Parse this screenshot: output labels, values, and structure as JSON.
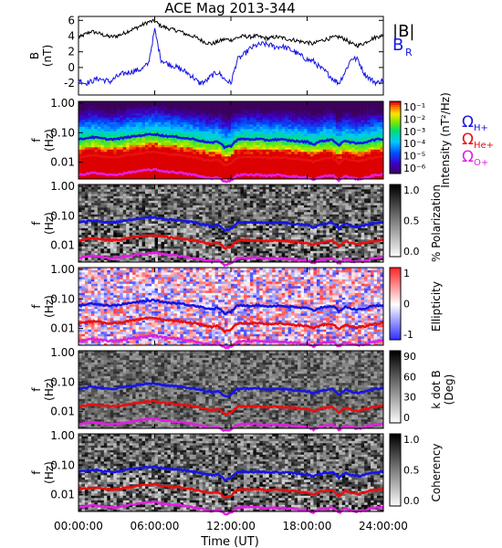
{
  "title": "ACE Mag 2013-344",
  "x_axis": {
    "label": "Time (UT)",
    "ticks": [
      "00:00:00",
      "06:00:00",
      "12:00:00",
      "18:00:00",
      "24:00:00"
    ],
    "range_hours": [
      0,
      24
    ]
  },
  "colors": {
    "black": "#000000",
    "blue": "#1515e6",
    "red": "#e81010",
    "magenta": "#e020e0"
  },
  "chart_data": [
    {
      "type": "line",
      "id": "b-field",
      "ylabel_top": "B",
      "ylabel_bottom": "(nT)",
      "ylim": [
        -3.5,
        6.5
      ],
      "yticks": [
        -2,
        0,
        2,
        4,
        6
      ],
      "legend": [
        {
          "label": "|B|",
          "color": "#000000"
        },
        {
          "label": "B",
          "subscript": "R",
          "color": "#1515e6"
        }
      ],
      "x_hours": [
        0,
        0.5,
        1,
        1.5,
        2,
        2.5,
        3,
        3.5,
        4,
        4.5,
        5,
        5.5,
        6,
        6.5,
        7,
        7.5,
        8,
        8.5,
        9,
        9.5,
        10,
        10.5,
        11,
        11.5,
        12,
        12.5,
        13,
        13.5,
        14,
        14.5,
        15,
        15.5,
        16,
        16.5,
        17,
        17.5,
        18,
        18.5,
        19,
        19.5,
        20,
        20.5,
        21,
        21.5,
        22,
        22.5,
        23,
        23.5,
        24
      ],
      "series": [
        {
          "name": "|B|",
          "values": [
            3.8,
            4.2,
            4.6,
            4.4,
            4.1,
            3.9,
            4.0,
            4.3,
            4.7,
            5.0,
            5.4,
            5.8,
            5.9,
            5.3,
            5.0,
            4.8,
            4.6,
            4.2,
            4.0,
            3.6,
            3.2,
            3.0,
            3.3,
            3.6,
            3.5,
            3.8,
            4.0,
            3.9,
            4.0,
            3.8,
            3.7,
            3.9,
            3.8,
            3.6,
            3.5,
            3.3,
            3.2,
            3.0,
            3.4,
            3.6,
            3.8,
            3.9,
            3.6,
            3.0,
            2.8,
            3.1,
            3.6,
            3.9,
            4.1
          ]
        },
        {
          "name": "B",
          "values": [
            -1.5,
            -2.0,
            -1.8,
            -1.4,
            -1.6,
            -1.8,
            -1.2,
            -0.8,
            -0.6,
            -0.4,
            -0.2,
            0.5,
            4.8,
            1.0,
            0.5,
            0.2,
            -0.2,
            -0.6,
            -1.2,
            -2.0,
            -1.8,
            -1.0,
            -0.6,
            -1.5,
            -2.0,
            1.0,
            1.6,
            2.4,
            2.8,
            3.0,
            2.9,
            2.6,
            2.7,
            2.4,
            2.0,
            1.5,
            1.0,
            0.8,
            0.0,
            -0.6,
            -1.4,
            -2.0,
            -0.5,
            1.2,
            1.0,
            -0.8,
            -1.5,
            -2.0,
            -1.5
          ]
        }
      ]
    },
    {
      "type": "heatmap",
      "id": "intensity",
      "ylabel_top": "f",
      "ylabel_bottom": "(Hz)",
      "yticks": [
        "1.00",
        "0.10",
        "0.01"
      ],
      "colorbar_label": "Intensity (nT²/Hz)",
      "colorbar_ticks": [
        "10⁻¹",
        "10⁻²",
        "10⁻³",
        "10⁻⁴",
        "10⁻⁵",
        "10⁻⁶"
      ],
      "legend": [
        {
          "label": "Ω",
          "subscript": "H+",
          "color": "#1515e6"
        },
        {
          "label": "Ω",
          "subscript": "He+",
          "color": "#e81010"
        },
        {
          "label": "Ω",
          "subscript": "O+",
          "color": "#e020e0"
        }
      ]
    },
    {
      "type": "heatmap",
      "id": "polarization",
      "ylabel_top": "f",
      "ylabel_bottom": "(Hz)",
      "yticks": [
        "1.00",
        "0.10",
        "0.01"
      ],
      "colorbar_label": "% Polarization",
      "colorbar_ticks": [
        "1.0",
        "0.5",
        "0.0"
      ]
    },
    {
      "type": "heatmap",
      "id": "ellipticity",
      "ylabel_top": "f",
      "ylabel_bottom": "(Hz)",
      "yticks": [
        "1.00",
        "0.10",
        "0.01"
      ],
      "colorbar_label": "Ellipticity",
      "colorbar_ticks": [
        "1",
        "0",
        "-1"
      ]
    },
    {
      "type": "heatmap",
      "id": "kdotb",
      "ylabel_top": "f",
      "ylabel_bottom": "(Hz)",
      "yticks": [
        "1.00",
        "0.10",
        "0.01"
      ],
      "colorbar_label": "k dot B",
      "colorbar_label2": "(Deg)",
      "colorbar_ticks": [
        "90",
        "60",
        "30",
        "0"
      ]
    },
    {
      "type": "heatmap",
      "id": "coherency",
      "ylabel_top": "f",
      "ylabel_bottom": "(Hz)",
      "yticks": [
        "1.00",
        "0.10",
        "0.01"
      ],
      "colorbar_label": "Coherency",
      "colorbar_ticks": [
        "1.0",
        "0.5",
        "0.0"
      ]
    }
  ],
  "gyrofrequency_lines": {
    "x_hours": [
      0,
      0.5,
      1,
      1.5,
      2,
      2.5,
      3,
      3.5,
      4,
      4.5,
      5,
      5.5,
      6,
      6.5,
      7,
      7.5,
      8,
      8.5,
      9,
      9.5,
      10,
      10.5,
      11,
      11.5,
      12,
      12.5,
      13,
      13.5,
      14,
      14.5,
      15,
      15.5,
      16,
      16.5,
      17,
      17.5,
      18,
      18.5,
      19,
      19.5,
      20,
      20.5,
      21,
      21.5,
      22,
      22.5,
      23,
      23.5,
      24
    ],
    "H_plus_hz": [
      0.058,
      0.064,
      0.07,
      0.067,
      0.062,
      0.06,
      0.061,
      0.066,
      0.072,
      0.076,
      0.082,
      0.088,
      0.09,
      0.081,
      0.076,
      0.073,
      0.07,
      0.064,
      0.061,
      0.055,
      0.049,
      0.045,
      0.05,
      0.032,
      0.036,
      0.058,
      0.061,
      0.059,
      0.061,
      0.058,
      0.056,
      0.059,
      0.058,
      0.055,
      0.053,
      0.05,
      0.049,
      0.04,
      0.05,
      0.055,
      0.058,
      0.036,
      0.055,
      0.046,
      0.043,
      0.047,
      0.055,
      0.059,
      0.062
    ],
    "He_plus_hz": [
      0.0145,
      0.016,
      0.0175,
      0.0167,
      0.0155,
      0.015,
      0.0152,
      0.0165,
      0.018,
      0.019,
      0.0205,
      0.022,
      0.0225,
      0.0202,
      0.019,
      0.0182,
      0.0175,
      0.016,
      0.0152,
      0.0137,
      0.0122,
      0.0112,
      0.0125,
      0.008,
      0.009,
      0.0145,
      0.0152,
      0.0147,
      0.0152,
      0.0145,
      0.014,
      0.0147,
      0.0145,
      0.0137,
      0.0132,
      0.0125,
      0.0122,
      0.01,
      0.0125,
      0.0137,
      0.0145,
      0.009,
      0.0137,
      0.0115,
      0.0107,
      0.0117,
      0.0137,
      0.0147,
      0.0155
    ],
    "O_plus_hz": [
      0.0036,
      0.004,
      0.0044,
      0.0042,
      0.0039,
      0.0037,
      0.0038,
      0.0041,
      0.0045,
      0.0048,
      0.0051,
      0.0055,
      0.0056,
      0.0051,
      0.0048,
      0.0046,
      0.0044,
      0.004,
      0.0038,
      0.0034,
      0.0031,
      0.0028,
      0.0031,
      0.0022,
      0.0024,
      0.0036,
      0.0038,
      0.0037,
      0.0038,
      0.0036,
      0.0035,
      0.0037,
      0.0036,
      0.0034,
      0.0033,
      0.0031,
      0.0031,
      0.0025,
      0.0031,
      0.0034,
      0.0036,
      0.0024,
      0.0034,
      0.0029,
      0.0027,
      0.0029,
      0.0034,
      0.0037,
      0.0039
    ]
  }
}
